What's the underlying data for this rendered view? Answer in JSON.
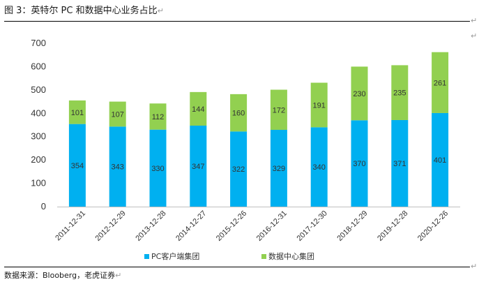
{
  "page": {
    "title": "图 3：英特尔 PC 和数据中心业务占比",
    "title_mark": "↵",
    "source": "数据来源：Blooberg，老虎证券",
    "source_mark": "↵",
    "edge_mark": "↵"
  },
  "chart_data": {
    "type": "bar",
    "stacked": true,
    "title": "",
    "xlabel": "",
    "ylabel": "",
    "ylim": [
      0,
      700
    ],
    "yticks": [
      0,
      100,
      200,
      300,
      400,
      500,
      600,
      700
    ],
    "grid": false,
    "legend_position": "bottom",
    "categories": [
      "2011-12-31",
      "2012-12-29",
      "2013-12-28",
      "2014-12-27",
      "2015-12-26",
      "2016-12-31",
      "2017-12-30",
      "2018-12-29",
      "2019-12-28",
      "2020-12-26"
    ],
    "series": [
      {
        "name": "PC客户端集团",
        "color": "#00b0f0",
        "values": [
          354,
          343,
          330,
          347,
          322,
          329,
          340,
          370,
          371,
          401
        ]
      },
      {
        "name": "数据中心集团",
        "color": "#92d050",
        "values": [
          101,
          107,
          112,
          144,
          160,
          172,
          191,
          230,
          235,
          261
        ]
      }
    ]
  }
}
